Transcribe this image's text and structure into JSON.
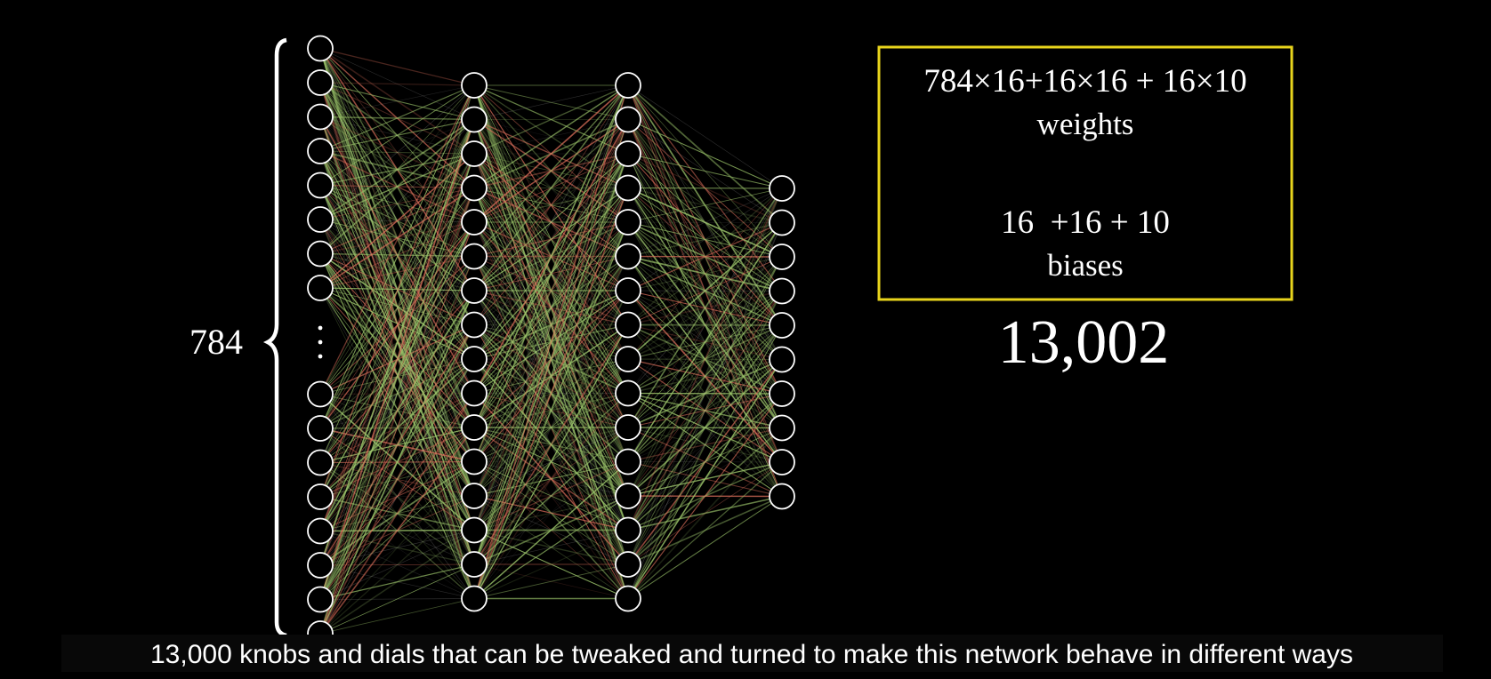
{
  "diagram": {
    "input_count": "784",
    "formula": {
      "weights_expression": "784×16+16×16 + 16×10",
      "weights_label": "weights",
      "biases_expression": "16  +16 + 10",
      "biases_label": "biases"
    },
    "total": "13,002"
  },
  "caption": "13,000 knobs and dials that can be tweaked and turned to make this network behave in different ways"
}
